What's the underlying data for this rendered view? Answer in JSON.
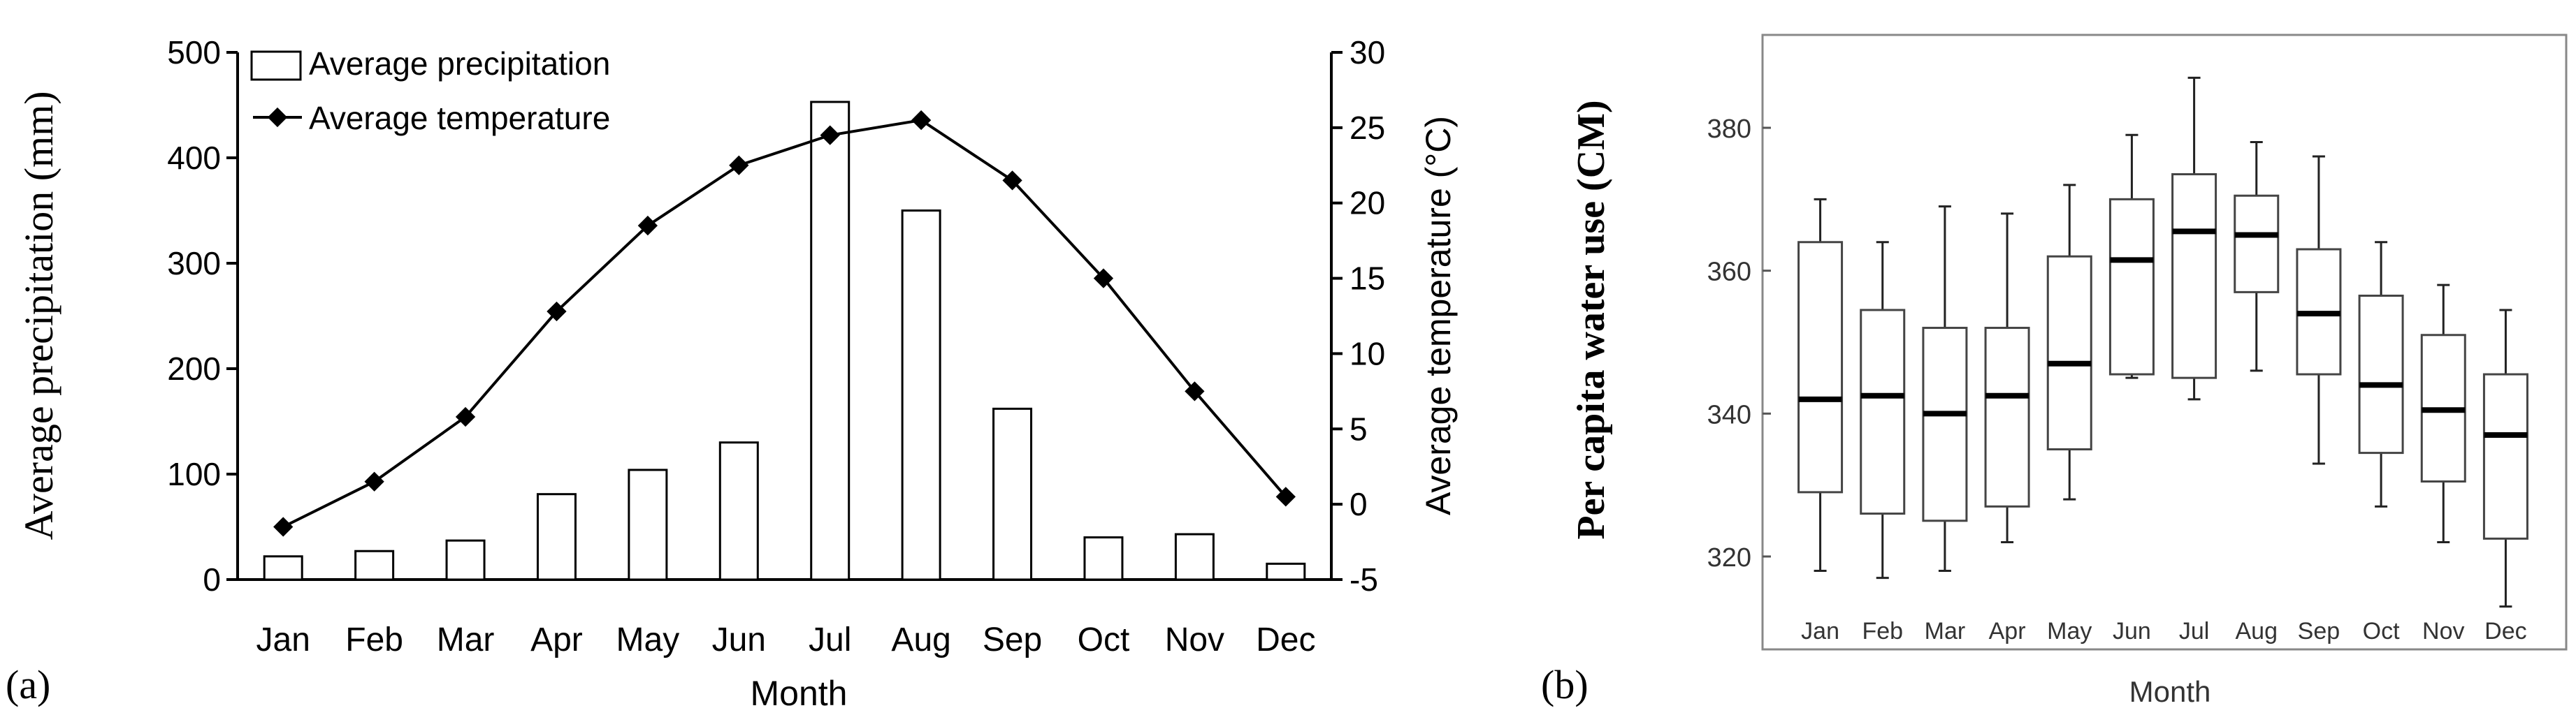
{
  "chart_data": [
    {
      "type": "bar+line",
      "panel_label": "(a)",
      "categories": [
        "Jan",
        "Feb",
        "Mar",
        "Apr",
        "May",
        "Jun",
        "Jul",
        "Aug",
        "Sep",
        "Oct",
        "Nov",
        "Dec"
      ],
      "series": [
        {
          "name": "Average precipitation",
          "type": "bar",
          "axis": "left",
          "values": [
            22,
            27,
            37,
            81,
            104,
            130,
            453,
            350,
            162,
            40,
            43,
            15
          ]
        },
        {
          "name": "Average temperature",
          "type": "line",
          "axis": "right",
          "values": [
            -1.5,
            1.5,
            5.8,
            12.8,
            18.5,
            22.5,
            24.5,
            25.5,
            21.5,
            15,
            7.5,
            0.5
          ]
        }
      ],
      "xlabel": "Month",
      "ylabel": "Average precipitation (mm)",
      "y2label": "Average temperature (°C)",
      "ylim": [
        0,
        500
      ],
      "y2lim": [
        -5,
        30
      ],
      "yticks": [
        "0",
        "100",
        "200",
        "300",
        "400",
        "500"
      ],
      "y2ticks": [
        "-5",
        "0",
        "5",
        "10",
        "15",
        "20",
        "25",
        "30"
      ],
      "legend_position": "top-left"
    },
    {
      "type": "boxplot",
      "panel_label": "(b)",
      "categories": [
        "Jan",
        "Feb",
        "Mar",
        "Apr",
        "May",
        "Jun",
        "Jul",
        "Aug",
        "Sep",
        "Oct",
        "Nov",
        "Dec"
      ],
      "boxes": [
        {
          "min": 318,
          "q1": 329,
          "median": 342,
          "q3": 364,
          "max": 370
        },
        {
          "min": 317,
          "q1": 326,
          "median": 342.5,
          "q3": 354.5,
          "max": 364
        },
        {
          "min": 318,
          "q1": 325,
          "median": 340,
          "q3": 352,
          "max": 369
        },
        {
          "min": 322,
          "q1": 327,
          "median": 342.5,
          "q3": 352,
          "max": 368
        },
        {
          "min": 328,
          "q1": 335,
          "median": 347,
          "q3": 362,
          "max": 372
        },
        {
          "min": 345,
          "q1": 345.5,
          "median": 361.5,
          "q3": 370,
          "max": 379
        },
        {
          "min": 342,
          "q1": 345,
          "median": 365.5,
          "q3": 373.5,
          "max": 387
        },
        {
          "min": 346,
          "q1": 357,
          "median": 365,
          "q3": 370.5,
          "max": 378
        },
        {
          "min": 333,
          "q1": 345.5,
          "median": 354,
          "q3": 363,
          "max": 376
        },
        {
          "min": 327,
          "q1": 334.5,
          "median": 344,
          "q3": 356.5,
          "max": 364
        },
        {
          "min": 322,
          "q1": 330.5,
          "median": 340.5,
          "q3": 351,
          "max": 358
        },
        {
          "min": 313,
          "q1": 322.5,
          "median": 337,
          "q3": 345.5,
          "max": 354.5
        }
      ],
      "xlabel": "Month",
      "ylabel": "Per capita water use (CM)",
      "ylim": [
        307,
        393
      ],
      "yticks": [
        "320",
        "340",
        "360",
        "380"
      ]
    }
  ]
}
